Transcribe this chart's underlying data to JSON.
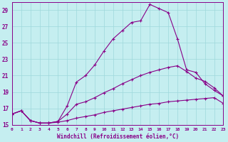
{
  "xlabel": "Windchill (Refroidissement éolien,°C)",
  "xlim": [
    0,
    23
  ],
  "ylim": [
    15,
    30
  ],
  "yticks": [
    15,
    17,
    19,
    21,
    23,
    25,
    27,
    29
  ],
  "xticks": [
    0,
    1,
    2,
    3,
    4,
    5,
    6,
    7,
    8,
    9,
    10,
    11,
    12,
    13,
    14,
    15,
    16,
    17,
    18,
    19,
    20,
    21,
    22,
    23
  ],
  "background_color": "#c5eef0",
  "grid_color": "#9dd8db",
  "line_color": "#880088",
  "line1_x": [
    0,
    1,
    2,
    3,
    4,
    5,
    6,
    7,
    8,
    9,
    10,
    11,
    12,
    13,
    14,
    15,
    16,
    17,
    18,
    19,
    20,
    21,
    22,
    23
  ],
  "line1_y": [
    16.3,
    16.7,
    15.5,
    15.2,
    15.2,
    15.3,
    15.5,
    15.8,
    16.0,
    16.2,
    16.5,
    16.7,
    16.9,
    17.1,
    17.3,
    17.5,
    17.6,
    17.8,
    17.9,
    18.0,
    18.1,
    18.2,
    18.3,
    17.6
  ],
  "line2_x": [
    0,
    1,
    2,
    3,
    4,
    5,
    6,
    7,
    8,
    9,
    10,
    11,
    12,
    13,
    14,
    15,
    16,
    17,
    18,
    19,
    20,
    21,
    22,
    23
  ],
  "line2_y": [
    16.3,
    16.7,
    15.5,
    15.2,
    15.2,
    15.4,
    16.3,
    17.5,
    17.8,
    18.3,
    18.9,
    19.4,
    20.0,
    20.5,
    21.0,
    21.4,
    21.7,
    22.0,
    22.2,
    21.5,
    20.7,
    20.3,
    19.5,
    18.5
  ],
  "line3_x": [
    0,
    1,
    2,
    3,
    4,
    5,
    6,
    7,
    8,
    9,
    10,
    11,
    12,
    13,
    14,
    15,
    16,
    17,
    18,
    19,
    20,
    21,
    22,
    23
  ],
  "line3_y": [
    16.3,
    16.7,
    15.5,
    15.2,
    15.2,
    15.4,
    17.3,
    20.2,
    21.0,
    22.3,
    24.0,
    25.5,
    26.5,
    27.5,
    27.7,
    29.7,
    29.2,
    28.7,
    25.5,
    21.7,
    21.4,
    20.0,
    19.2,
    18.5
  ]
}
